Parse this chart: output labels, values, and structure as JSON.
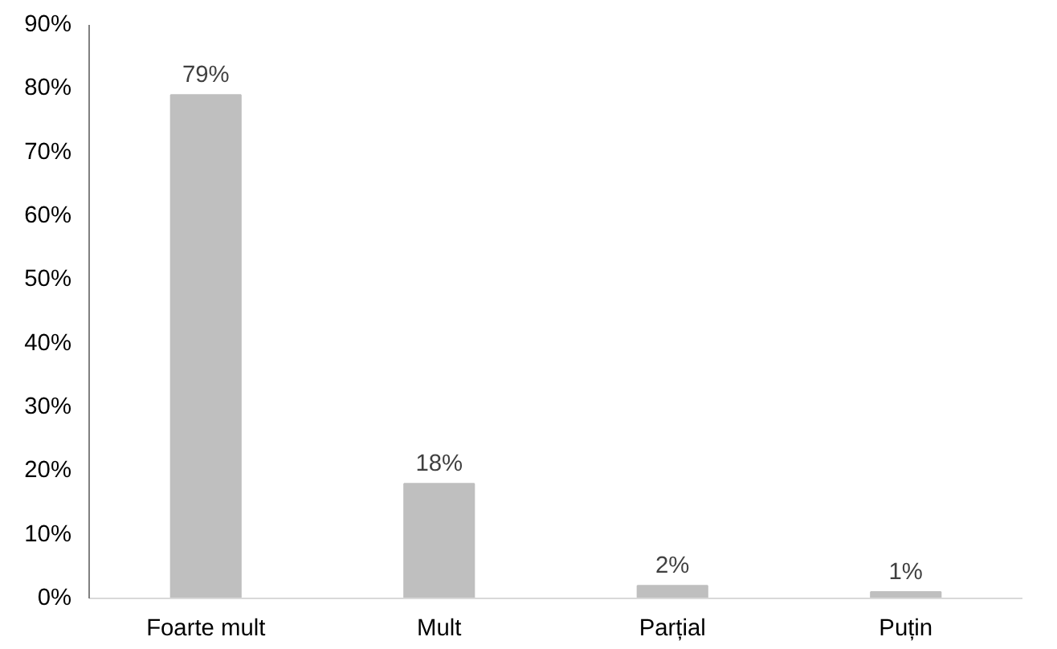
{
  "chart_data": {
    "type": "bar",
    "categories": [
      "Foarte mult",
      "Mult",
      "Parțial",
      "Puțin"
    ],
    "values": [
      79,
      18,
      2,
      1
    ],
    "color": "#bfbfbf",
    "value_labels": [
      "79%",
      "18%",
      "2%",
      "1%"
    ],
    "ylim": [
      0,
      90
    ],
    "yticks": [
      {
        "value": 0,
        "label": "0%"
      },
      {
        "value": 10,
        "label": "10%"
      },
      {
        "value": 20,
        "label": "20%"
      },
      {
        "value": 30,
        "label": "30%"
      },
      {
        "value": 40,
        "label": "40%"
      },
      {
        "value": 50,
        "label": "50%"
      },
      {
        "value": 60,
        "label": "60%"
      },
      {
        "value": 70,
        "label": "70%"
      },
      {
        "value": 80,
        "label": "80%"
      },
      {
        "value": 90,
        "label": "90%"
      }
    ],
    "grid": false
  }
}
